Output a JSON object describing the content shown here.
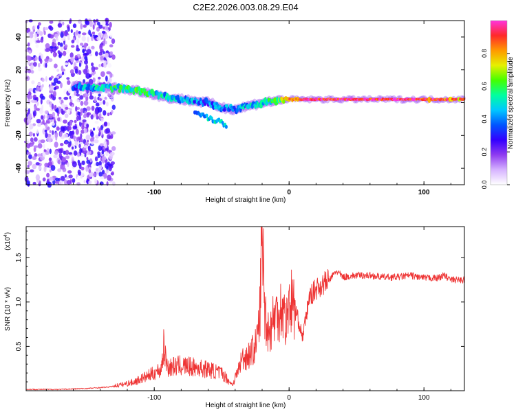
{
  "title": "C2E2.2026.003.08.29.E04",
  "chart_data": [
    {
      "type": "heatmap",
      "name": "spectrogram",
      "xlabel": "Height of straight line (km)",
      "ylabel": "Frequency (Hz)",
      "xlim": [
        -195,
        130
      ],
      "ylim": [
        -50,
        50
      ],
      "xticks": [
        -100,
        0,
        100
      ],
      "xtick_labels": [
        "-100",
        "0",
        "100"
      ],
      "yticks": [
        -40,
        -20,
        0,
        20,
        40
      ],
      "ytick_labels": [
        "-40",
        "-20",
        "0",
        "20",
        "40"
      ],
      "colorbar": {
        "label": "Normalized spectral amplitude",
        "range": [
          0,
          1
        ],
        "ticks": [
          0.0,
          0.2,
          0.4,
          0.6,
          0.8
        ],
        "tick_labels": [
          "0.0",
          "0.2",
          "0.4",
          "0.6",
          "0.8"
        ],
        "colors": [
          "#ffffff",
          "#d6b3ff",
          "#8f3cf0",
          "#3300ff",
          "#0055ff",
          "#00c8ff",
          "#00ffa0",
          "#44ff00",
          "#e6f000",
          "#ff9900",
          "#ff2a2a",
          "#ff33dd"
        ]
      },
      "noise_region_x": [
        -195,
        -130
      ],
      "noise_amplitude": 0.3,
      "ridge": {
        "x": [
          -160,
          -150,
          -140,
          -130,
          -120,
          -110,
          -100,
          -90,
          -80,
          -70,
          -60,
          -50,
          -40,
          -30,
          -20,
          -10,
          0,
          10,
          20,
          40,
          60,
          80,
          100,
          120,
          130
        ],
        "freq": [
          10,
          9,
          9,
          9,
          8,
          7,
          5,
          3,
          2,
          1,
          0,
          -3,
          -4,
          -2,
          0,
          1,
          2,
          2,
          2,
          2,
          2,
          2,
          2,
          2,
          2
        ],
        "amplitude": [
          0.35,
          0.42,
          0.48,
          0.52,
          0.55,
          0.55,
          0.5,
          0.45,
          0.42,
          0.38,
          0.35,
          0.38,
          0.42,
          0.45,
          0.5,
          0.55,
          0.85,
          0.9,
          0.92,
          0.95,
          0.95,
          0.95,
          0.92,
          0.85,
          0.8
        ]
      },
      "branch": {
        "x": [
          -70,
          -60,
          -50,
          -46
        ],
        "freq": [
          -5,
          -9,
          -12,
          -14
        ],
        "amplitude": [
          0.35,
          0.45,
          0.5,
          0.45
        ]
      }
    },
    {
      "type": "line",
      "name": "snr",
      "xlabel": "Height of straight line (km)",
      "ylabel": "SNR (10 * v/v)",
      "scale_label": "(x10",
      "scale_exponent": "4",
      "scale_close": ")",
      "line_color": "#ee3333",
      "xlim": [
        -195,
        130
      ],
      "ylim": [
        0,
        18500
      ],
      "xticks": [
        -100,
        0,
        100
      ],
      "xtick_labels": [
        "-100",
        "0",
        "100"
      ],
      "yticks": [
        5000,
        10000,
        15000
      ],
      "ytick_labels": [
        "0.5",
        "1.0",
        "1.5"
      ],
      "series": [
        {
          "name": "SNR",
          "x": [
            -195,
            -170,
            -150,
            -135,
            -125,
            -115,
            -105,
            -95,
            -93,
            -90,
            -80,
            -70,
            -60,
            -50,
            -42,
            -38,
            -35,
            -30,
            -25,
            -22,
            -20,
            -18,
            -15,
            -12,
            -8,
            -5,
            -2,
            0,
            5,
            10,
            15,
            20,
            25,
            30,
            35,
            40,
            50,
            60,
            70,
            80,
            90,
            100,
            110,
            115,
            120,
            130
          ],
          "y": [
            150,
            150,
            250,
            400,
            600,
            900,
            1500,
            2200,
            4500,
            2400,
            2600,
            2400,
            2200,
            1800,
            700,
            2200,
            3600,
            4000,
            5000,
            7500,
            18500,
            9000,
            6500,
            8000,
            9000,
            9500,
            7500,
            10500,
            9000,
            6000,
            10500,
            11500,
            12000,
            12500,
            13500,
            12800,
            13000,
            13000,
            12800,
            12800,
            13000,
            12700,
            12700,
            13000,
            12500,
            12500
          ]
        }
      ]
    }
  ]
}
